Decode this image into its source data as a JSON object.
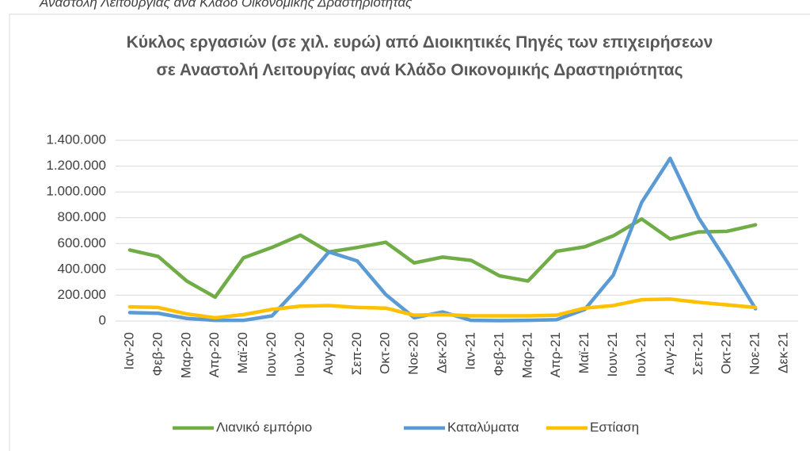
{
  "caption": "Αναστολή Λειτουργίας ανά Κλάδο Οικονομικής Δραστηριότητας",
  "chart_data": {
    "type": "line",
    "title": "Κύκλος εργασιών (σε χιλ. ευρώ) από Διοικητικές Πηγές των επιχειρήσεων σε Αναστολή Λειτουργίας ανά Κλάδο Οικονομικής Δραστηριότητας",
    "categories": [
      "Ιαν-20",
      "Φεβ-20",
      "Μαρ-20",
      "Απρ-20",
      "Μαϊ-20",
      "Ιουν-20",
      "Ιουλ-20",
      "Αυγ-20",
      "Σεπ-20",
      "Οκτ-20",
      "Νοε-20",
      "Δεκ-20",
      "Ιαν-21",
      "Φεβ-21",
      "Μαρ-21",
      "Απρ-21",
      "Μαϊ-21",
      "Ιουν-21",
      "Ιουλ-21",
      "Αυγ-21",
      "Σεπ-21",
      "Οκτ-21",
      "Νοε-21",
      "Δεκ-21"
    ],
    "series": [
      {
        "name": "Λιανικό εμπόριο",
        "color": "#70ad47",
        "values": [
          550000,
          500000,
          310000,
          185000,
          490000,
          570000,
          665000,
          535000,
          570000,
          610000,
          450000,
          495000,
          470000,
          350000,
          310000,
          540000,
          575000,
          660000,
          790000,
          635000,
          690000,
          695000,
          745000,
          null
        ]
      },
      {
        "name": "Καταλύματα",
        "color": "#5b9bd5",
        "values": [
          65000,
          60000,
          20000,
          5000,
          5000,
          40000,
          275000,
          535000,
          465000,
          205000,
          25000,
          70000,
          5000,
          3000,
          5000,
          10000,
          90000,
          355000,
          920000,
          1260000,
          800000,
          460000,
          95000,
          null
        ]
      },
      {
        "name": "Εστίαση",
        "color": "#ffc000",
        "values": [
          110000,
          105000,
          55000,
          25000,
          50000,
          90000,
          115000,
          120000,
          105000,
          100000,
          45000,
          50000,
          40000,
          40000,
          40000,
          45000,
          100000,
          120000,
          165000,
          170000,
          145000,
          125000,
          105000,
          null
        ]
      }
    ],
    "ylim": [
      0,
      1400000
    ],
    "yticks": [
      0,
      {
        "value": 200000,
        "label": "200.000"
      },
      {
        "value": 400000,
        "label": "400.000"
      },
      {
        "value": 600000,
        "label": "600.000"
      },
      {
        "value": 800000,
        "label": "800.000"
      },
      {
        "value": 1000000,
        "label": "1.000.000"
      },
      {
        "value": 1200000,
        "label": "1.200.000"
      },
      {
        "value": 1400000,
        "label": "1.400.000"
      }
    ],
    "grid": true,
    "legend": "bottom"
  }
}
